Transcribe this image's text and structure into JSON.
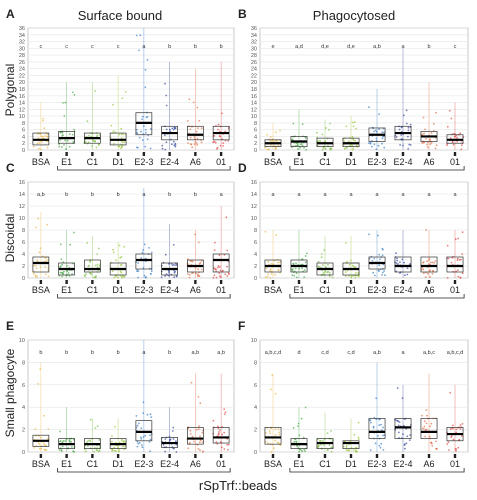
{
  "figure": {
    "column_titles": [
      "Surface bound",
      "Phagocytosed"
    ],
    "row_labels": [
      "Polygonal",
      "Discoidal",
      "Small phagocyte"
    ],
    "x_axis_title": "rSpTrf::beads",
    "categories": [
      "BSA",
      "E1",
      "C1",
      "D1",
      "E2-3",
      "E2-4",
      "A6",
      "01"
    ],
    "colors": [
      "#e8b84a",
      "#4aa84a",
      "#7dc045",
      "#9ac83a",
      "#3f7fc4",
      "#3a4aa0",
      "#e0714a",
      "#e04a4a"
    ]
  },
  "chart_data": [
    {
      "panel": "A",
      "type": "box",
      "title": "Surface bound",
      "ylabel": "Polygonal",
      "ylim": [
        0,
        36
      ],
      "yticks": [
        0,
        2,
        4,
        6,
        8,
        10,
        12,
        14,
        16,
        18,
        20,
        22,
        24,
        26,
        28,
        30,
        32,
        34,
        36
      ],
      "letters": [
        "c",
        "c",
        "c",
        "c",
        "a",
        "b",
        "b",
        "b"
      ],
      "series": [
        {
          "category": "BSA",
          "q1": 1.5,
          "median": 3,
          "q3": 5,
          "max": 14
        },
        {
          "category": "E1",
          "q1": 2,
          "median": 3.5,
          "q3": 5.5,
          "max": 20
        },
        {
          "category": "C1",
          "q1": 2,
          "median": 3.5,
          "q3": 5,
          "max": 20
        },
        {
          "category": "D1",
          "q1": 1.5,
          "median": 3,
          "q3": 5,
          "max": 22
        },
        {
          "category": "E2-3",
          "q1": 4.5,
          "median": 8,
          "q3": 11,
          "max": 36
        },
        {
          "category": "E2-4",
          "q1": 3,
          "median": 5,
          "q3": 7,
          "max": 26
        },
        {
          "category": "A6",
          "q1": 3,
          "median": 4.5,
          "q3": 7,
          "max": 24
        },
        {
          "category": "01",
          "q1": 3,
          "median": 5,
          "q3": 7,
          "max": 26
        }
      ]
    },
    {
      "panel": "B",
      "type": "box",
      "title": "Phagocytosed",
      "ylabel": "",
      "ylim": [
        0,
        36
      ],
      "yticks": [
        0,
        2,
        4,
        6,
        8,
        10,
        12,
        14,
        16,
        18,
        20,
        22,
        24,
        26,
        28,
        30,
        32,
        34,
        36
      ],
      "letters": [
        "e",
        "a,d",
        "d,e",
        "d,e",
        "a,b",
        "a",
        "b",
        "c"
      ],
      "series": [
        {
          "category": "BSA",
          "q1": 1,
          "median": 2,
          "q3": 3,
          "max": 8
        },
        {
          "category": "E1",
          "q1": 1,
          "median": 2.5,
          "q3": 4,
          "max": 12
        },
        {
          "category": "C1",
          "q1": 1,
          "median": 2,
          "q3": 3.5,
          "max": 9
        },
        {
          "category": "D1",
          "q1": 1,
          "median": 2,
          "q3": 3.5,
          "max": 10
        },
        {
          "category": "E2-3",
          "q1": 2.5,
          "median": 4.5,
          "q3": 6.5,
          "max": 18
        },
        {
          "category": "E2-4",
          "q1": 3,
          "median": 5,
          "q3": 7,
          "max": 30
        },
        {
          "category": "A6",
          "q1": 2.5,
          "median": 4,
          "q3": 5.5,
          "max": 20
        },
        {
          "category": "01",
          "q1": 2,
          "median": 3,
          "q3": 4.5,
          "max": 14
        }
      ]
    },
    {
      "panel": "C",
      "type": "box",
      "title": "",
      "ylabel": "Discoidal",
      "ylim": [
        0,
        16
      ],
      "yticks": [
        0,
        2,
        4,
        6,
        8,
        10,
        12,
        14,
        16
      ],
      "letters": [
        "a,b",
        "b",
        "b",
        "b",
        "a",
        "b",
        "b",
        "a"
      ],
      "series": [
        {
          "category": "BSA",
          "q1": 1,
          "median": 2.5,
          "q3": 3.5,
          "max": 11
        },
        {
          "category": "E1",
          "q1": 0.5,
          "median": 1.5,
          "q3": 2.5,
          "max": 8
        },
        {
          "category": "C1",
          "q1": 1,
          "median": 1.5,
          "q3": 3,
          "max": 7
        },
        {
          "category": "D1",
          "q1": 0.5,
          "median": 1.5,
          "q3": 2.5,
          "max": 6
        },
        {
          "category": "E2-3",
          "q1": 1.5,
          "median": 3,
          "q3": 4,
          "max": 15
        },
        {
          "category": "E2-4",
          "q1": 0.5,
          "median": 1.5,
          "q3": 2.5,
          "max": 9
        },
        {
          "category": "A6",
          "q1": 1,
          "median": 2,
          "q3": 3,
          "max": 8
        },
        {
          "category": "01",
          "q1": 1,
          "median": 3,
          "q3": 4,
          "max": 12
        }
      ]
    },
    {
      "panel": "D",
      "type": "box",
      "title": "",
      "ylabel": "",
      "ylim": [
        0,
        16
      ],
      "yticks": [
        0,
        2,
        4,
        6,
        8,
        10,
        12,
        14,
        16
      ],
      "letters": [
        "a",
        "a",
        "a",
        "a",
        "a",
        "a",
        "a",
        "a"
      ],
      "series": [
        {
          "category": "BSA",
          "q1": 1,
          "median": 2,
          "q3": 3,
          "max": 8
        },
        {
          "category": "E1",
          "q1": 1,
          "median": 2,
          "q3": 3,
          "max": 8
        },
        {
          "category": "C1",
          "q1": 0.5,
          "median": 1.5,
          "q3": 2.5,
          "max": 7
        },
        {
          "category": "D1",
          "q1": 0.5,
          "median": 1.5,
          "q3": 2.5,
          "max": 7
        },
        {
          "category": "E2-3",
          "q1": 1.5,
          "median": 2.5,
          "q3": 3.5,
          "max": 8
        },
        {
          "category": "E2-4",
          "q1": 1,
          "median": 2,
          "q3": 3.5,
          "max": 8
        },
        {
          "category": "A6",
          "q1": 1,
          "median": 2,
          "q3": 3.5,
          "max": 8
        },
        {
          "category": "01",
          "q1": 1,
          "median": 2,
          "q3": 3.5,
          "max": 8
        }
      ]
    },
    {
      "panel": "E",
      "type": "box",
      "title": "",
      "ylabel": "Small phagocyte",
      "ylim": [
        0,
        10
      ],
      "yticks": [
        0,
        2,
        4,
        6,
        8,
        10
      ],
      "letters": [
        "b",
        "b",
        "b",
        "b",
        "a",
        "b",
        "a,b",
        "a,b"
      ],
      "series": [
        {
          "category": "BSA",
          "q1": 0.5,
          "median": 1,
          "q3": 1.5,
          "max": 8
        },
        {
          "category": "E1",
          "q1": 0.3,
          "median": 0.7,
          "q3": 1.2,
          "max": 4
        },
        {
          "category": "C1",
          "q1": 0.3,
          "median": 0.7,
          "q3": 1.2,
          "max": 3
        },
        {
          "category": "D1",
          "q1": 0.3,
          "median": 0.7,
          "q3": 1.2,
          "max": 3
        },
        {
          "category": "E2-3",
          "q1": 1,
          "median": 1.8,
          "q3": 2.8,
          "max": 10
        },
        {
          "category": "E2-4",
          "q1": 0.4,
          "median": 0.8,
          "q3": 1.3,
          "max": 4
        },
        {
          "category": "A6",
          "q1": 0.7,
          "median": 1.2,
          "q3": 2.2,
          "max": 7
        },
        {
          "category": "01",
          "q1": 0.8,
          "median": 1.3,
          "q3": 2.2,
          "max": 7
        }
      ]
    },
    {
      "panel": "F",
      "type": "box",
      "title": "",
      "ylabel": "",
      "ylim": [
        0,
        10
      ],
      "yticks": [
        0,
        2,
        4,
        6,
        8,
        10
      ],
      "letters": [
        "a,b,c,d",
        "d",
        "c,d",
        "c,d",
        "a,b",
        "a",
        "a,b,c",
        "a,b,c,d"
      ],
      "series": [
        {
          "category": "BSA",
          "q1": 0.7,
          "median": 1.3,
          "q3": 2.2,
          "max": 7
        },
        {
          "category": "E1",
          "q1": 0.3,
          "median": 0.7,
          "q3": 1.2,
          "max": 4
        },
        {
          "category": "C1",
          "q1": 0.3,
          "median": 0.8,
          "q3": 1.2,
          "max": 3.5
        },
        {
          "category": "D1",
          "q1": 0.3,
          "median": 0.8,
          "q3": 1,
          "max": 3
        },
        {
          "category": "E2-3",
          "q1": 1.2,
          "median": 1.8,
          "q3": 3,
          "max": 8
        },
        {
          "category": "E2-4",
          "q1": 1.2,
          "median": 2.2,
          "q3": 3,
          "max": 6
        },
        {
          "category": "A6",
          "q1": 1.2,
          "median": 1.8,
          "q3": 3,
          "max": 7
        },
        {
          "category": "01",
          "q1": 1,
          "median": 1.6,
          "q3": 2.2,
          "max": 6
        }
      ]
    }
  ]
}
